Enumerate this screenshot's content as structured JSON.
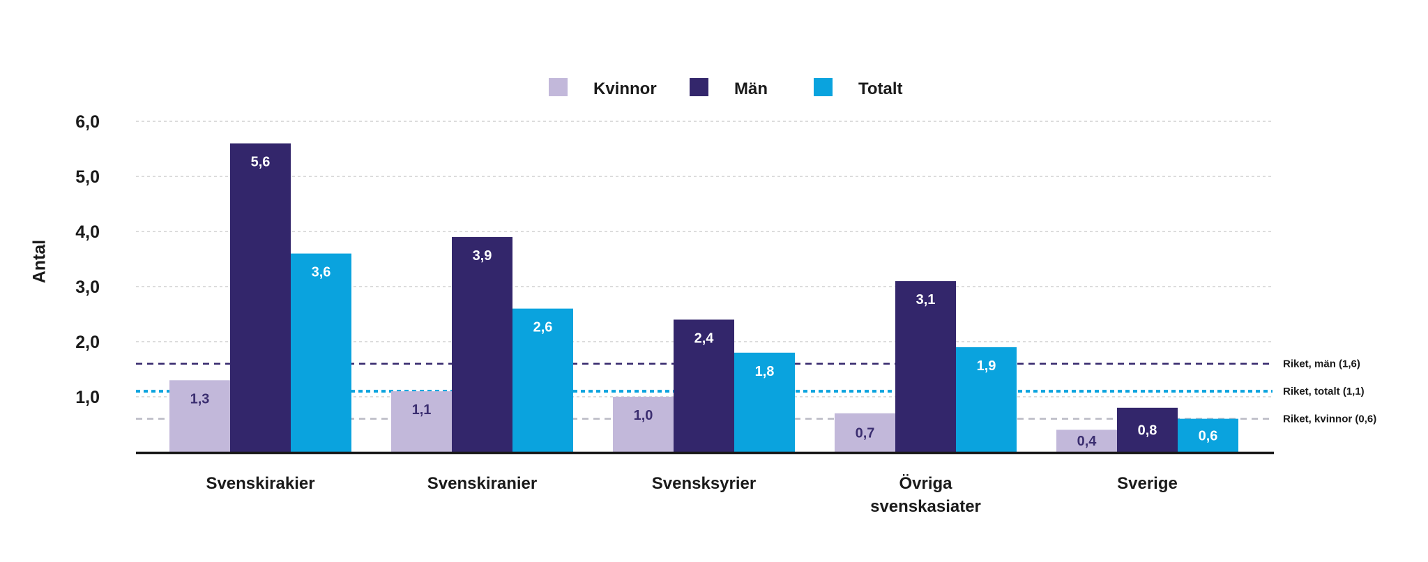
{
  "chart_data": {
    "type": "bar",
    "title": "",
    "xlabel": "",
    "ylabel": "Antal",
    "ylim": [
      0,
      6.0
    ],
    "yticks": [
      "1,0",
      "2,0",
      "3,0",
      "4,0",
      "5,0",
      "6,0"
    ],
    "ytick_values": [
      1,
      2,
      3,
      4,
      5,
      6
    ],
    "grid": true,
    "legend_position": "top-center",
    "categories": [
      [
        "Svenskirakier"
      ],
      [
        "Svenskiranier"
      ],
      [
        "Svensksyrier"
      ],
      [
        "Övriga",
        "svenskasiater"
      ],
      [
        "Sverige"
      ]
    ],
    "series": [
      {
        "name": "Kvinnor",
        "color": "#c2b8da",
        "label_color": "#3b2e70",
        "values": [
          1.3,
          1.1,
          1.0,
          0.7,
          0.4
        ],
        "labels": [
          "1,3",
          "1,1",
          "1,0",
          "0,7",
          "0,4"
        ]
      },
      {
        "name": "Män",
        "color": "#33266b",
        "label_color": "#ffffff",
        "values": [
          5.6,
          3.9,
          2.4,
          3.1,
          0.8
        ],
        "labels": [
          "5,6",
          "3,9",
          "2,4",
          "3,1",
          "0,8"
        ]
      },
      {
        "name": "Totalt",
        "color": "#0aa3de",
        "label_color": "#ffffff",
        "values": [
          3.6,
          2.6,
          1.8,
          1.9,
          0.6
        ],
        "labels": [
          "3,6",
          "2,6",
          "1,8",
          "1,9",
          "0,6"
        ]
      }
    ],
    "reference_lines": [
      {
        "label": "Riket, män (1,6)",
        "value": 1.6,
        "color": "#33266b"
      },
      {
        "label": "Riket, totalt (1,1)",
        "value": 1.1,
        "color": "#0aa3de"
      },
      {
        "label": "Riket, kvinnor (0,6)",
        "value": 0.6,
        "color": "#b9b9c4"
      }
    ]
  }
}
